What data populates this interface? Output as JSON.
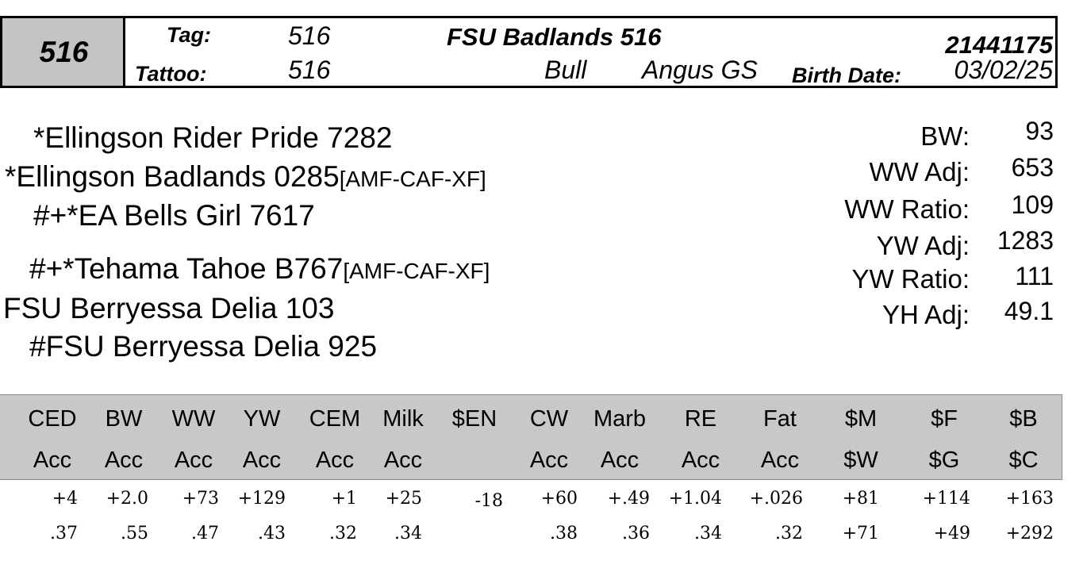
{
  "header": {
    "lot": "516",
    "tag_label": "Tag:",
    "tag": "516",
    "tattoo_label": "Tattoo:",
    "tattoo": "516",
    "name": "FSU Badlands 516",
    "sex": "Bull",
    "breed": "Angus GS",
    "registration": "21441175",
    "birth_date_label": "Birth Date:",
    "birth_date": "03/02/25"
  },
  "pedigree": {
    "sire_sire": "*Ellingson Rider Pride 7282",
    "sire": "*Ellingson Badlands 0285",
    "sire_tag": "[AMF-CAF-XF]",
    "sire_dam": "#+*EA Bells Girl 7617",
    "dam_sire": "#+*Tehama Tahoe B767",
    "dam_sire_tag": "[AMF-CAF-XF]",
    "dam": "FSU Berryessa Delia 103",
    "dam_dam": "#FSU Berryessa Delia 925"
  },
  "performance": [
    {
      "label": "BW:",
      "value": "93"
    },
    {
      "label": "WW Adj:",
      "value": "653"
    },
    {
      "label": "WW Ratio:",
      "value": "109"
    },
    {
      "label": "YW Adj:",
      "value": "1283"
    },
    {
      "label": "YW Ratio:",
      "value": "111"
    },
    {
      "label": "YH Adj:",
      "value": "49.1"
    }
  ],
  "epd_table": {
    "columns": [
      {
        "top": "CED",
        "bottom": "Acc",
        "epd": "+4",
        "acc": ".37"
      },
      {
        "top": "BW",
        "bottom": "Acc",
        "epd": "+2.0",
        "acc": ".55"
      },
      {
        "top": "WW",
        "bottom": "Acc",
        "epd": "+73",
        "acc": ".47"
      },
      {
        "top": "YW",
        "bottom": "Acc",
        "epd": "+129",
        "acc": ".43"
      },
      {
        "top": "CEM",
        "bottom": "Acc",
        "epd": "+1",
        "acc": ".32"
      },
      {
        "top": "Milk",
        "bottom": "Acc",
        "epd": "+25",
        "acc": ".34"
      },
      {
        "top": "$EN",
        "bottom": "",
        "epd": "-18",
        "acc": ""
      },
      {
        "top": "CW",
        "bottom": "Acc",
        "epd": "+60",
        "acc": ".38"
      },
      {
        "top": "Marb",
        "bottom": "Acc",
        "epd": "+.49",
        "acc": ".36"
      },
      {
        "top": "RE",
        "bottom": "Acc",
        "epd": "+1.04",
        "acc": ".34"
      },
      {
        "top": "Fat",
        "bottom": "Acc",
        "epd": "+.026",
        "acc": ".32"
      },
      {
        "top": "$M",
        "bottom": "$W",
        "epd": "+81",
        "acc": "+71"
      },
      {
        "top": "$F",
        "bottom": "$G",
        "epd": "+114",
        "acc": "+49"
      },
      {
        "top": "$B",
        "bottom": "$C",
        "epd": "+163",
        "acc": "+292"
      }
    ]
  }
}
